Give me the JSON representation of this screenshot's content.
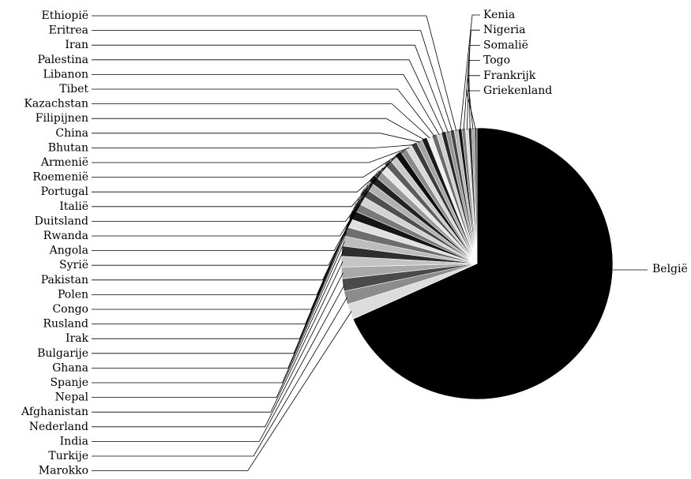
{
  "chart_data": {
    "type": "pie",
    "title": "",
    "start": "top",
    "direction": "clockwise",
    "slices": [
      {
        "label": "België",
        "value": 64.5,
        "color": "#000000"
      },
      {
        "label": "Marokko",
        "value": 1.75,
        "color": "#dcdcdc"
      },
      {
        "label": "Turkije",
        "value": 1.5,
        "color": "#8c8c8c"
      },
      {
        "label": "India",
        "value": 1.4,
        "color": "#4a4a4a"
      },
      {
        "label": "Nederland",
        "value": 1.3,
        "color": "#a9a9a9"
      },
      {
        "label": "Afghanistan",
        "value": 1.2,
        "color": "#c4c4c4"
      },
      {
        "label": "Nepal",
        "value": 1.15,
        "color": "#2e2e2e"
      },
      {
        "label": "Spanje",
        "value": 1.1,
        "color": "#bdbdbd"
      },
      {
        "label": "Ghana",
        "value": 1.05,
        "color": "#6e6e6e"
      },
      {
        "label": "Bulgarije",
        "value": 1.0,
        "color": "#e0e0e0"
      },
      {
        "label": "Irak",
        "value": 1.0,
        "color": "#161616"
      },
      {
        "label": "Rusland",
        "value": 0.95,
        "color": "#7a7a7a"
      },
      {
        "label": "Congo",
        "value": 0.95,
        "color": "#d3d3d3"
      },
      {
        "label": "Polen",
        "value": 0.9,
        "color": "#4f4f4f"
      },
      {
        "label": "Pakistan",
        "value": 0.9,
        "color": "#b0b0b0"
      },
      {
        "label": "Syrië",
        "value": 0.85,
        "color": "#222222"
      },
      {
        "label": "Angola",
        "value": 0.85,
        "color": "#999999"
      },
      {
        "label": "Rwanda",
        "value": 0.8,
        "color": "#e6e6e6"
      },
      {
        "label": "Duitsland",
        "value": 0.8,
        "color": "#5c5c5c"
      },
      {
        "label": "Italië",
        "value": 0.75,
        "color": "#c8c8c8"
      },
      {
        "label": "Portugal",
        "value": 0.75,
        "color": "#0e0e0e"
      },
      {
        "label": "Roemenië",
        "value": 0.7,
        "color": "#8a8a8a"
      },
      {
        "label": "Armenië",
        "value": 0.7,
        "color": "#d9d9d9"
      },
      {
        "label": "Bhutan",
        "value": 0.65,
        "color": "#3a3a3a"
      },
      {
        "label": "China",
        "value": 0.65,
        "color": "#a3a3a3"
      },
      {
        "label": "Filipijnen",
        "value": 0.6,
        "color": "#1a1a1a"
      },
      {
        "label": "Kazachstan",
        "value": 0.6,
        "color": "#f0f0f0"
      },
      {
        "label": "Tibet",
        "value": 0.55,
        "color": "#6a6a6a"
      },
      {
        "label": "Libanon",
        "value": 0.55,
        "color": "#cfcfcf"
      },
      {
        "label": "Palestina",
        "value": 0.5,
        "color": "#262626"
      },
      {
        "label": "Iran",
        "value": 0.5,
        "color": "#959595"
      },
      {
        "label": "Eritrea",
        "value": 0.45,
        "color": "#454545"
      },
      {
        "label": "Ethiopië",
        "value": 0.45,
        "color": "#b8b8b8"
      },
      {
        "label": "Kenia",
        "value": 0.4,
        "color": "#121212"
      },
      {
        "label": "Nigeria",
        "value": 0.4,
        "color": "#7f7f7f"
      },
      {
        "label": "Somalië",
        "value": 0.35,
        "color": "#dedede"
      },
      {
        "label": "Togo",
        "value": 0.35,
        "color": "#333333"
      },
      {
        "label": "Frankrijk",
        "value": 0.3,
        "color": "#a0a0a0"
      },
      {
        "label": "Griekenland",
        "value": 0.3,
        "color": "#5a5a5a"
      }
    ],
    "legend": "none"
  }
}
